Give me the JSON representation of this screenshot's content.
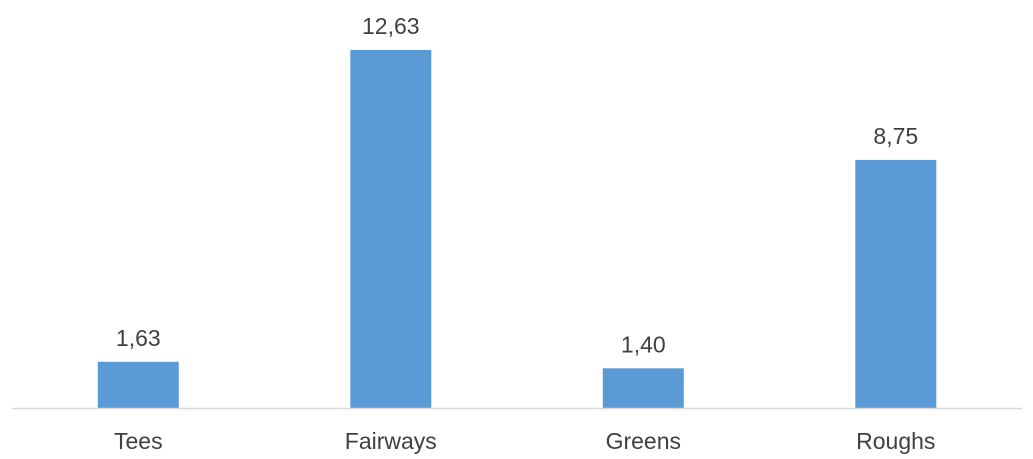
{
  "chart_data": {
    "type": "bar",
    "categories": [
      "Tees",
      "Fairways",
      "Greens",
      "Roughs"
    ],
    "values": [
      1.63,
      12.63,
      1.4,
      8.75
    ],
    "value_labels": [
      "1,63",
      "12,63",
      "1,40",
      "8,75"
    ],
    "title": "",
    "xlabel": "",
    "ylabel": "",
    "ylim": [
      0,
      14
    ],
    "grid": false,
    "legend": "none",
    "colors": {
      "bar": "#5b9bd5",
      "axis": "#d9d9d9",
      "text": "#404040"
    }
  }
}
